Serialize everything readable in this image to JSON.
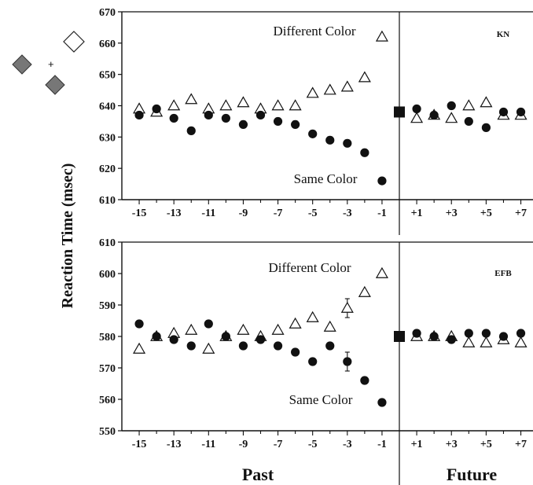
{
  "ylabel": "Reaction Time (msec)",
  "xlabel_past": "Past",
  "xlabel_future": "Future",
  "inset_plus": "+",
  "chart_data": [
    {
      "type": "scatter",
      "subject": "KN",
      "ylim": [
        610,
        670
      ],
      "yticks": [
        610,
        620,
        630,
        640,
        650,
        660,
        670
      ],
      "xticks_past": [
        "-15",
        "-13",
        "-11",
        "-9",
        "-7",
        "-5",
        "-3",
        "-1"
      ],
      "xticks_future": [
        "+1",
        "+3",
        "+5",
        "+7"
      ],
      "annotations": {
        "different": "Different Color",
        "same": "Same Color"
      },
      "series": [
        {
          "name": "Different Color",
          "marker": "open-triangle",
          "past": [
            [
              -15,
              639
            ],
            [
              -14,
              638
            ],
            [
              -13,
              640
            ],
            [
              -12,
              642
            ],
            [
              -11,
              639
            ],
            [
              -10,
              640
            ],
            [
              -9,
              641
            ],
            [
              -8,
              639
            ],
            [
              -7,
              640
            ],
            [
              -6,
              640
            ],
            [
              -5,
              644
            ],
            [
              -4,
              645
            ],
            [
              -3,
              646
            ],
            [
              -2,
              649
            ],
            [
              -1,
              662
            ]
          ],
          "future": [
            [
              1,
              636
            ],
            [
              2,
              637
            ],
            [
              3,
              636
            ],
            [
              4,
              640
            ],
            [
              5,
              641
            ],
            [
              6,
              637
            ],
            [
              7,
              637
            ]
          ]
        },
        {
          "name": "Same Color",
          "marker": "filled-circle",
          "past": [
            [
              -15,
              637
            ],
            [
              -14,
              639
            ],
            [
              -13,
              636
            ],
            [
              -12,
              632
            ],
            [
              -11,
              637
            ],
            [
              -10,
              636
            ],
            [
              -9,
              634
            ],
            [
              -8,
              637
            ],
            [
              -7,
              635
            ],
            [
              -6,
              634
            ],
            [
              -5,
              631
            ],
            [
              -4,
              629
            ],
            [
              -3,
              628
            ],
            [
              -2,
              625
            ],
            [
              -1,
              616
            ]
          ],
          "future": [
            [
              1,
              639
            ],
            [
              2,
              637
            ],
            [
              3,
              640
            ],
            [
              4,
              635
            ],
            [
              5,
              633
            ],
            [
              6,
              638
            ],
            [
              7,
              638
            ]
          ]
        }
      ],
      "zero_point": 638,
      "error_bars": []
    },
    {
      "type": "scatter",
      "subject": "EFB",
      "ylim": [
        550,
        610
      ],
      "yticks": [
        550,
        560,
        570,
        580,
        590,
        600,
        610
      ],
      "xticks_past": [
        "-15",
        "-13",
        "-11",
        "-9",
        "-7",
        "-5",
        "-3",
        "-1"
      ],
      "xticks_future": [
        "+1",
        "+3",
        "+5",
        "+7"
      ],
      "annotations": {
        "different": "Different Color",
        "same": "Same Color"
      },
      "series": [
        {
          "name": "Different Color",
          "marker": "open-triangle",
          "past": [
            [
              -15,
              576
            ],
            [
              -14,
              580
            ],
            [
              -13,
              581
            ],
            [
              -12,
              582
            ],
            [
              -11,
              576
            ],
            [
              -10,
              580
            ],
            [
              -9,
              582
            ],
            [
              -8,
              580
            ],
            [
              -7,
              582
            ],
            [
              -6,
              584
            ],
            [
              -5,
              586
            ],
            [
              -4,
              583
            ],
            [
              -3,
              589
            ],
            [
              -2,
              594
            ],
            [
              -1,
              600
            ]
          ],
          "future": [
            [
              1,
              580
            ],
            [
              2,
              580
            ],
            [
              3,
              580
            ],
            [
              4,
              578
            ],
            [
              5,
              578
            ],
            [
              6,
              579
            ],
            [
              7,
              578
            ]
          ]
        },
        {
          "name": "Same Color",
          "marker": "filled-circle",
          "past": [
            [
              -15,
              584
            ],
            [
              -14,
              580
            ],
            [
              -13,
              579
            ],
            [
              -12,
              577
            ],
            [
              -11,
              584
            ],
            [
              -10,
              580
            ],
            [
              -9,
              577
            ],
            [
              -8,
              579
            ],
            [
              -7,
              577
            ],
            [
              -6,
              575
            ],
            [
              -5,
              572
            ],
            [
              -4,
              577
            ],
            [
              -3,
              572
            ],
            [
              -2,
              566
            ],
            [
              -1,
              559
            ]
          ],
          "future": [
            [
              1,
              581
            ],
            [
              2,
              580
            ],
            [
              3,
              579
            ],
            [
              4,
              581
            ],
            [
              5,
              581
            ],
            [
              6,
              580
            ],
            [
              7,
              581
            ]
          ]
        }
      ],
      "zero_point": 580,
      "error_bars": [
        {
          "x": -3,
          "series": "Different Color",
          "y": 589,
          "low": 586,
          "high": 592
        },
        {
          "x": -3,
          "series": "Same Color",
          "y": 572,
          "low": 569,
          "high": 575
        }
      ]
    }
  ]
}
